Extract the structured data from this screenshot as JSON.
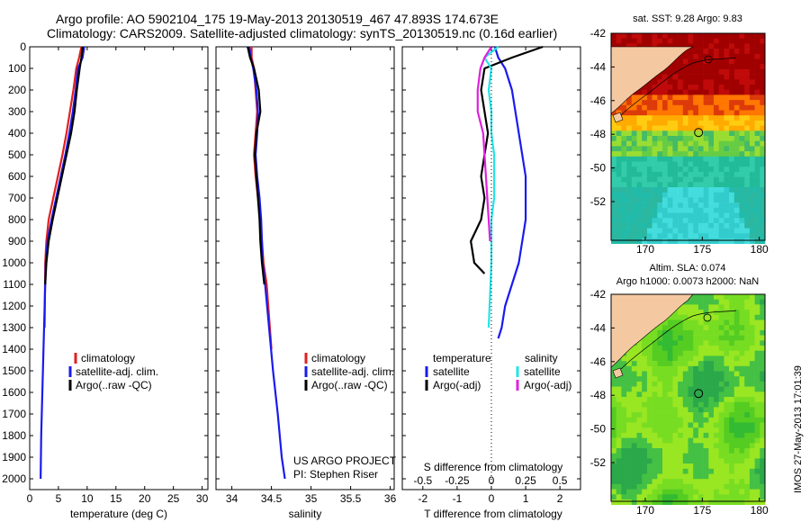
{
  "header": {
    "line1": "Argo profile: AO 5902104_175 19-May-2013 20130519_467 47.893S 174.673E",
    "line2": "Climatology: CARS2009. Satellite-adjusted climatology: synTS_20130519.nc (0.16d earlier)"
  },
  "colors": {
    "climatology": "#e02020",
    "satellite": "#1a1aee",
    "argo": "#000000",
    "sal_satellite": "#22e5ea",
    "sal_argo": "#dd22dd",
    "land": "#f4c8a0"
  },
  "credits": {
    "project": "US ARGO PROJECT",
    "pi": "PI: Stephen Riser",
    "stamp": "IMOS 27-May-2013 17:01:39"
  },
  "chart_data": [
    {
      "type": "line",
      "panel": "temperature",
      "xlabel": "temperature (deg C)",
      "ylabel": "",
      "xlim": [
        0,
        31
      ],
      "ylim": [
        2050,
        0
      ],
      "xticks": [
        0,
        5,
        10,
        15,
        20,
        25,
        30
      ],
      "yticks": [
        0,
        100,
        200,
        300,
        400,
        500,
        600,
        700,
        800,
        900,
        1000,
        1100,
        1200,
        1300,
        1400,
        1500,
        1600,
        1700,
        1800,
        1900,
        2000
      ],
      "y_reversed": true,
      "legend": [
        "climatology",
        "satellite-adj. clim.",
        "Argo(..raw -QC)"
      ],
      "legend_position": "lower-right",
      "series": [
        {
          "name": "climatology",
          "color": "#e02020",
          "x": [
            9.0,
            8.6,
            8.1,
            7.6,
            7.0,
            6.4,
            5.7,
            4.9,
            4.1,
            3.3,
            2.9,
            2.7,
            2.6
          ],
          "y": [
            0,
            50,
            100,
            200,
            300,
            400,
            500,
            600,
            700,
            800,
            900,
            1000,
            1300
          ]
        },
        {
          "name": "satellite-adj. clim.",
          "color": "#1a1aee",
          "x": [
            9.5,
            9.2,
            8.4,
            8.0,
            7.5,
            6.9,
            6.2,
            5.4,
            4.6,
            3.8,
            3.1,
            2.8,
            2.6,
            2.4,
            2.2,
            2.0,
            1.9
          ],
          "y": [
            0,
            50,
            100,
            200,
            300,
            400,
            500,
            600,
            700,
            800,
            900,
            1000,
            1200,
            1400,
            1600,
            1800,
            2000
          ]
        },
        {
          "name": "Argo(..raw -QC)",
          "color": "#000000",
          "x": [
            9.2,
            9.0,
            8.7,
            8.2,
            7.8,
            7.2,
            6.4,
            5.6,
            4.8,
            4.0,
            3.3,
            2.9,
            2.7
          ],
          "y": [
            0,
            50,
            100,
            200,
            300,
            400,
            500,
            600,
            700,
            800,
            900,
            1000,
            1100
          ]
        }
      ]
    },
    {
      "type": "line",
      "panel": "salinity",
      "xlabel": "salinity",
      "ylabel": "",
      "xlim": [
        33.8,
        36.05
      ],
      "ylim": [
        2050,
        0
      ],
      "xticks": [
        34,
        34.5,
        35,
        35.5,
        36
      ],
      "y_reversed": true,
      "legend": [
        "climatology",
        "satellite-adj. clim.",
        "Argo(..raw -QC)"
      ],
      "legend_position": "lower-right",
      "series": [
        {
          "name": "climatology",
          "color": "#e02020",
          "x": [
            34.25,
            34.25,
            34.28,
            34.3,
            34.32,
            34.3,
            34.28,
            34.3,
            34.33,
            34.36,
            34.38,
            34.4,
            34.44,
            34.48,
            34.5
          ],
          "y": [
            0,
            50,
            100,
            200,
            300,
            400,
            500,
            600,
            700,
            800,
            900,
            1000,
            1100,
            1300,
            1400
          ]
        },
        {
          "name": "satellite-adj. clim.",
          "color": "#1a1aee",
          "x": [
            34.22,
            34.24,
            34.27,
            34.31,
            34.33,
            34.32,
            34.3,
            34.32,
            34.35,
            34.37,
            34.38,
            34.39,
            34.42,
            34.47,
            34.52,
            34.58,
            34.63,
            34.67
          ],
          "y": [
            0,
            50,
            100,
            200,
            300,
            400,
            500,
            600,
            700,
            800,
            900,
            1000,
            1100,
            1300,
            1500,
            1700,
            1900,
            2000
          ]
        },
        {
          "name": "Argo(..raw -QC)",
          "color": "#000000",
          "x": [
            34.2,
            34.23,
            34.28,
            34.34,
            34.36,
            34.31,
            34.29,
            34.31,
            34.33,
            34.35,
            34.36,
            34.38,
            34.41
          ],
          "y": [
            0,
            50,
            100,
            200,
            300,
            400,
            500,
            600,
            700,
            800,
            900,
            1000,
            1100
          ]
        }
      ]
    },
    {
      "type": "line",
      "panel": "difference",
      "xlabel": "T difference from climatology",
      "x2label": "S difference from climatology",
      "ylabel": "",
      "xlim": [
        -2.6,
        2.6
      ],
      "x2lim": [
        -0.65,
        0.65
      ],
      "ylim": [
        2050,
        0
      ],
      "xticks": [
        -2,
        -1,
        0,
        1,
        2
      ],
      "x2ticks": [
        -0.5,
        -0.25,
        0,
        0.25,
        0.5
      ],
      "y_reversed": true,
      "legend": [
        "temperature",
        "satellite",
        "Argo(-adj)",
        "salinity",
        "satellite",
        "Argo(-adj)"
      ],
      "legend_position": "lower",
      "series": [
        {
          "name": "temperature satellite",
          "color": "#1a1aee",
          "x": [
            0.1,
            0.2,
            0.4,
            0.6,
            0.7,
            0.8,
            0.9,
            1.0,
            1.0,
            1.0,
            0.9,
            0.8,
            0.6,
            0.4,
            0.3,
            0.2
          ],
          "y": [
            0,
            50,
            100,
            200,
            300,
            400,
            500,
            600,
            700,
            800,
            900,
            1000,
            1100,
            1200,
            1300,
            1350
          ]
        },
        {
          "name": "temperature Argo(-adj)",
          "color": "#000000",
          "x": [
            1.5,
            0.6,
            -0.2,
            -0.3,
            -0.2,
            -0.1,
            -0.2,
            -0.3,
            -0.2,
            -0.3,
            -0.6,
            -0.5,
            -0.2
          ],
          "y": [
            0,
            50,
            100,
            200,
            300,
            400,
            500,
            600,
            700,
            800,
            900,
            1000,
            1050
          ]
        },
        {
          "name": "salinity satellite",
          "color": "#22e5ea",
          "x": [
            0.05,
            -0.05,
            0.0,
            -0.02,
            0.0,
            0.0,
            0.02,
            0.02,
            0.02,
            0.0,
            0.0,
            -0.02
          ],
          "y": [
            0,
            50,
            100,
            200,
            300,
            400,
            500,
            600,
            700,
            800,
            1000,
            1300
          ]
        },
        {
          "name": "salinity Argo(-adj)",
          "color": "#dd22dd",
          "x": [
            0.0,
            -0.05,
            -0.08,
            -0.1,
            -0.1,
            -0.06,
            -0.05,
            -0.04,
            -0.03,
            -0.02,
            -0.01
          ],
          "y": [
            0,
            50,
            100,
            200,
            300,
            400,
            500,
            600,
            700,
            800,
            900
          ]
        }
      ]
    },
    {
      "type": "heatmap",
      "panel": "sst-map",
      "title": "sat. SST: 9.28 Argo: 9.83",
      "xlim": [
        167,
        180.5
      ],
      "ylim": [
        -54.3,
        -42
      ],
      "xticks": [
        170,
        175,
        180
      ],
      "yticks": [
        -42,
        -44,
        -46,
        -48,
        -50,
        -52
      ],
      "float_position": {
        "lon": 174.673,
        "lat": -47.893
      }
    },
    {
      "type": "heatmap",
      "panel": "sla-map",
      "title": "Altim. SLA: 0.074",
      "subtitle": "Argo h1000: 0.0073 h2000: NaN",
      "xlim": [
        167,
        180.5
      ],
      "ylim": [
        -54.3,
        -42
      ],
      "xticks": [
        170,
        175,
        180
      ],
      "yticks": [
        -42,
        -44,
        -46,
        -48,
        -50,
        -52
      ],
      "float_position": {
        "lon": 174.673,
        "lat": -47.893
      }
    }
  ]
}
